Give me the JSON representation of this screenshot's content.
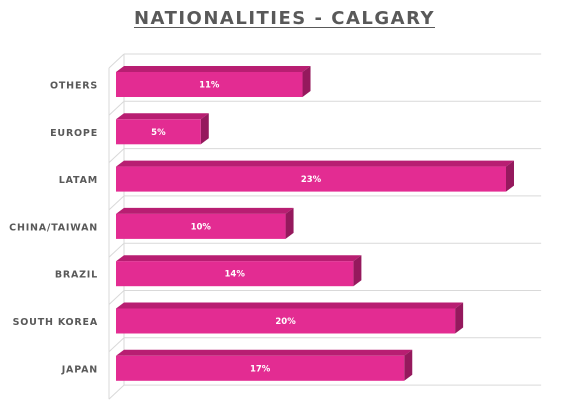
{
  "chart_data": {
    "type": "bar",
    "orientation": "horizontal",
    "style": "3d",
    "title": "NATIONALITIES - CALGARY",
    "categories": [
      "OTHERS",
      "EUROPE",
      "LATAM",
      "CHINA/TAIWAN",
      "BRAZIL",
      "SOUTH KOREA",
      "JAPAN"
    ],
    "values": [
      11,
      5,
      23,
      10,
      14,
      20,
      17
    ],
    "data_labels": [
      "11%",
      "5%",
      "23%",
      "10%",
      "14%",
      "20%",
      "17%"
    ],
    "value_unit": "%",
    "xlim": [
      0,
      25
    ],
    "xlabel": "",
    "ylabel": "",
    "grid": true,
    "legend": "none",
    "colors": {
      "bar_front": "#E32C92",
      "bar_top": "#B81E72",
      "bar_side": "#95195D",
      "gridline": "#D9D9D9",
      "text": "#595959",
      "data_label": "#FFFFFF"
    }
  }
}
